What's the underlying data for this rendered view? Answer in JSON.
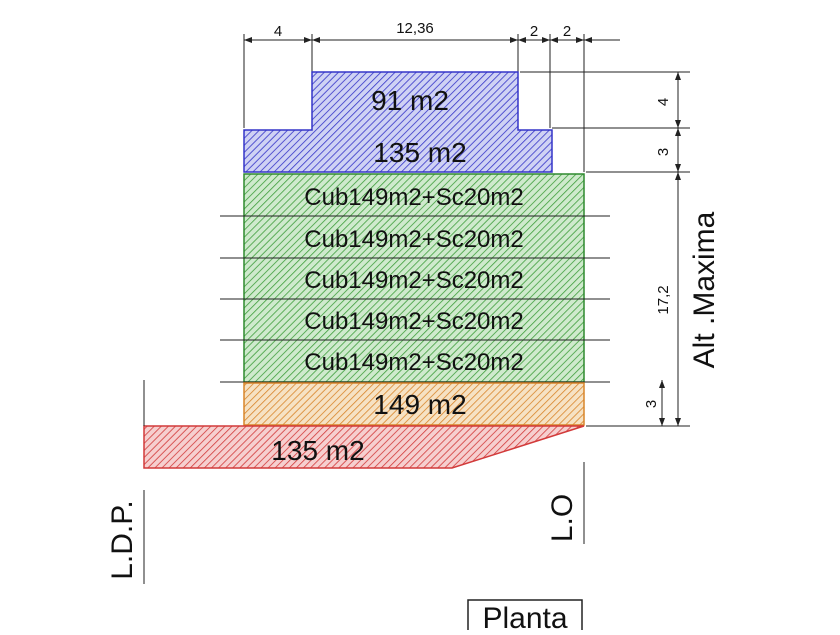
{
  "top_dims": [
    "4",
    "12,36",
    "2",
    "2"
  ],
  "right_dims": [
    "4",
    "3",
    "17,2",
    "3"
  ],
  "height_label": "Alt .Maxima",
  "levels": {
    "penthouse_top": "91 m2",
    "penthouse_low": "135 m2",
    "typical": [
      "Cub149m2+Sc20m2",
      "Cub149m2+Sc20m2",
      "Cub149m2+Sc20m2",
      "Cub149m2+Sc20m2",
      "Cub149m2+Sc20m2"
    ],
    "ground": "149 m2",
    "basement": "135 m2"
  },
  "left_line_label": "L.D.P.",
  "right_line_label": "L.O",
  "view_label": "Planta",
  "colors": {
    "blue": "#3535c8",
    "green": "#2f9a2f",
    "orange": "#d8852a",
    "red": "#d23a3a"
  }
}
